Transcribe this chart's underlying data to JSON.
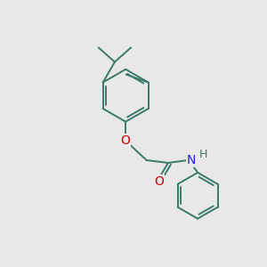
{
  "bg_color": "#e8e8e8",
  "bond_color": "#3a7a6a",
  "bond_width": 1.4,
  "atom_colors": {
    "O": "#cc0000",
    "N": "#2222cc",
    "H": "#3a7a6a"
  },
  "font_size": 9,
  "figsize": [
    3.0,
    3.0
  ],
  "dpi": 100
}
